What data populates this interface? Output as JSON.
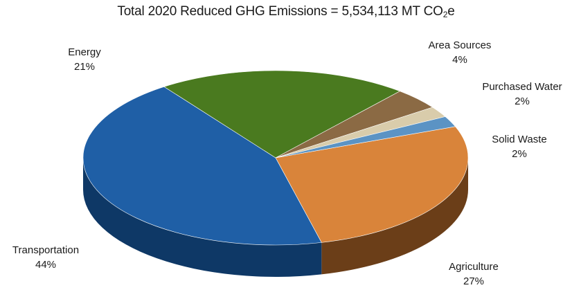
{
  "chart_data": {
    "type": "pie",
    "title_main": "Total 2020 Reduced GHG Emissions = 5,534,113 MT  CO",
    "title_sub": "2",
    "title_tail": "e",
    "slices": [
      {
        "name": "Transportation",
        "percent_label": "44%",
        "value": 44,
        "color": "#1f5fa6",
        "side": "#0e3866"
      },
      {
        "name": "Energy",
        "percent_label": "21%",
        "value": 21,
        "color": "#4a7a1f",
        "side": "#2c4a10"
      },
      {
        "name": "Area Sources",
        "percent_label": "4%",
        "value": 4,
        "color": "#8b6a44",
        "side": "#5a4128"
      },
      {
        "name": "Purchased Water",
        "percent_label": "2%",
        "value": 2,
        "color": "#d9ccab",
        "side": "#9a8f74"
      },
      {
        "name": "Solid Waste",
        "percent_label": "2%",
        "value": 2,
        "color": "#5b93c4",
        "side": "#2f5f88"
      },
      {
        "name": "Agriculture",
        "percent_label": "27%",
        "value": 27,
        "color": "#d9843a",
        "side": "#6b3e18"
      }
    ]
  }
}
